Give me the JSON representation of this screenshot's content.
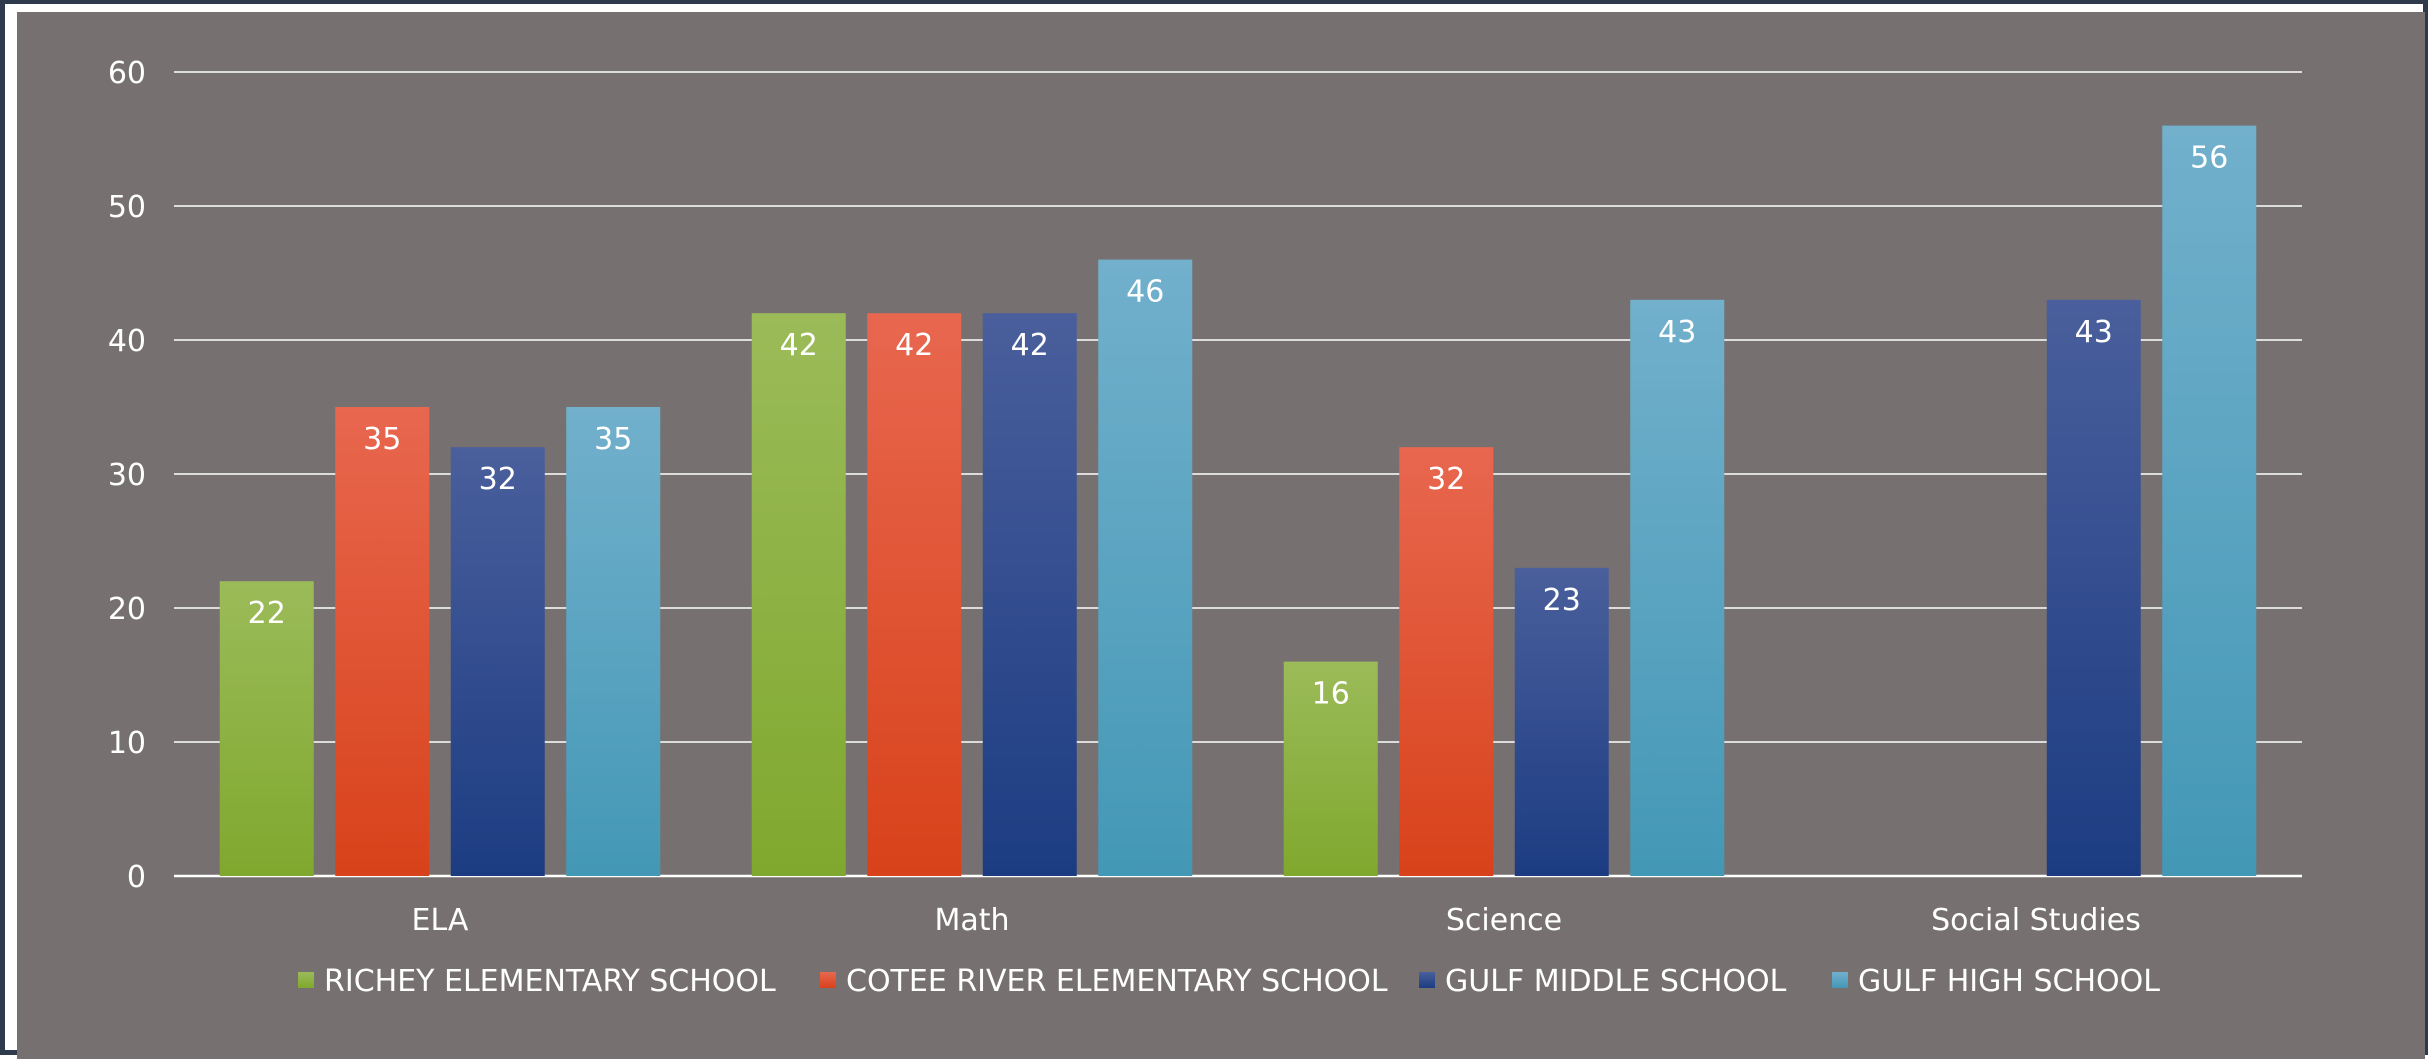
{
  "chart_data": {
    "type": "bar",
    "title": "",
    "xlabel": "",
    "ylabel": "",
    "categories": [
      "ELA",
      "Math",
      "Science",
      "Social Studies"
    ],
    "ylim": [
      0,
      60
    ],
    "yticks": [
      0,
      10,
      20,
      30,
      40,
      50,
      60
    ],
    "grid": true,
    "legend_position": "bottom",
    "background_color": "#767170",
    "series": [
      {
        "name": "RICHEY ELEMENTARY SCHOOL",
        "values": [
          22,
          42,
          16,
          null
        ],
        "color_top": "#9bbb59",
        "color_bottom": "#80a82e",
        "color": "#8bb33a"
      },
      {
        "name": "COTEE RIVER ELEMENTARY SCHOOL",
        "values": [
          35,
          42,
          32,
          null
        ],
        "color_top": "#e8674f",
        "color_bottom": "#d8421a",
        "color": "#e64a22"
      },
      {
        "name": "GULF MIDDLE SCHOOL",
        "values": [
          32,
          42,
          23,
          43
        ],
        "color_top": "#4a5f9c",
        "color_bottom": "#1c3c82",
        "color": "#223f85"
      },
      {
        "name": "GULF HIGH SCHOOL",
        "values": [
          35,
          46,
          43,
          56
        ],
        "color_top": "#72b0cc",
        "color_bottom": "#4398b6",
        "color": "#5aaeca"
      }
    ]
  }
}
